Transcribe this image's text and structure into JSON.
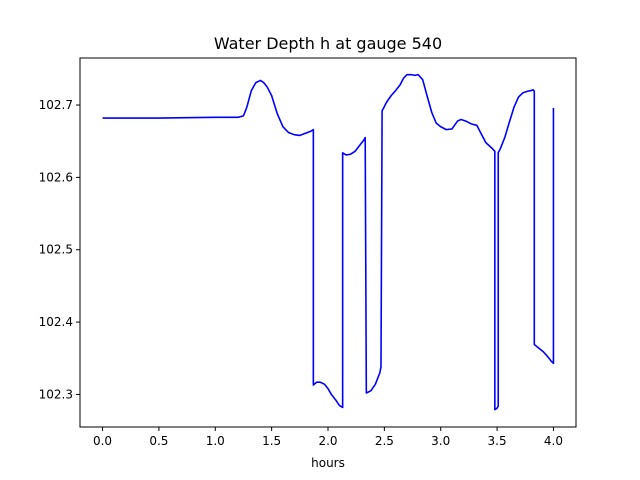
{
  "chart_data": {
    "type": "line",
    "title": "Water Depth h at gauge 540",
    "xlabel": "hours",
    "ylabel": "",
    "xlim": [
      -0.2,
      4.2
    ],
    "ylim": [
      102.255,
      102.765
    ],
    "xticks": [
      0.0,
      0.5,
      1.0,
      1.5,
      2.0,
      2.5,
      3.0,
      3.5,
      4.0
    ],
    "xtick_labels": [
      "0.0",
      "0.5",
      "1.0",
      "1.5",
      "2.0",
      "2.5",
      "3.0",
      "3.5",
      "4.0"
    ],
    "yticks": [
      102.3,
      102.4,
      102.5,
      102.6,
      102.7
    ],
    "ytick_labels": [
      "102.3",
      "102.4",
      "102.5",
      "102.6",
      "102.7"
    ],
    "grid": false,
    "series": [
      {
        "color": "#0000ff",
        "x": [
          0.0,
          0.5,
          1.0,
          1.2,
          1.25,
          1.28,
          1.32,
          1.36,
          1.4,
          1.43,
          1.46,
          1.5,
          1.55,
          1.6,
          1.65,
          1.7,
          1.75,
          1.8,
          1.85,
          1.87,
          1.87,
          1.9,
          1.93,
          1.97,
          2.0,
          2.03,
          2.07,
          2.1,
          2.13,
          2.13,
          2.16,
          2.2,
          2.24,
          2.28,
          2.32,
          2.33,
          2.34,
          2.38,
          2.42,
          2.46,
          2.47,
          2.48,
          2.52,
          2.56,
          2.6,
          2.64,
          2.67,
          2.7,
          2.74,
          2.77,
          2.8,
          2.84,
          2.88,
          2.92,
          2.96,
          3.0,
          3.05,
          3.1,
          3.15,
          3.18,
          3.22,
          3.27,
          3.32,
          3.36,
          3.4,
          3.45,
          3.48,
          3.48,
          3.5,
          3.51,
          3.51,
          3.53,
          3.57,
          3.61,
          3.65,
          3.69,
          3.73,
          3.77,
          3.8,
          3.82,
          3.83,
          3.83,
          3.87,
          3.91,
          3.95,
          3.98,
          4.0,
          4.0
        ],
        "y": [
          102.682,
          102.682,
          102.683,
          102.683,
          102.685,
          102.697,
          102.72,
          102.731,
          102.734,
          102.731,
          102.725,
          102.713,
          102.688,
          102.67,
          102.662,
          102.659,
          102.658,
          102.661,
          102.664,
          102.666,
          102.313,
          102.317,
          102.317,
          102.314,
          102.308,
          102.3,
          102.292,
          102.285,
          102.282,
          102.634,
          102.631,
          102.632,
          102.636,
          102.644,
          102.652,
          102.655,
          102.302,
          102.305,
          102.314,
          102.33,
          102.338,
          102.692,
          102.704,
          102.713,
          102.72,
          102.728,
          102.737,
          102.742,
          102.742,
          102.741,
          102.742,
          102.735,
          102.712,
          102.69,
          102.675,
          102.67,
          102.666,
          102.667,
          102.678,
          102.68,
          102.678,
          102.674,
          102.672,
          102.66,
          102.648,
          102.641,
          102.636,
          102.279,
          102.281,
          102.284,
          102.634,
          102.64,
          102.656,
          102.677,
          102.697,
          102.711,
          102.717,
          102.719,
          102.72,
          102.721,
          102.719,
          102.369,
          102.364,
          102.359,
          102.352,
          102.346,
          102.343,
          102.696
        ]
      }
    ]
  }
}
